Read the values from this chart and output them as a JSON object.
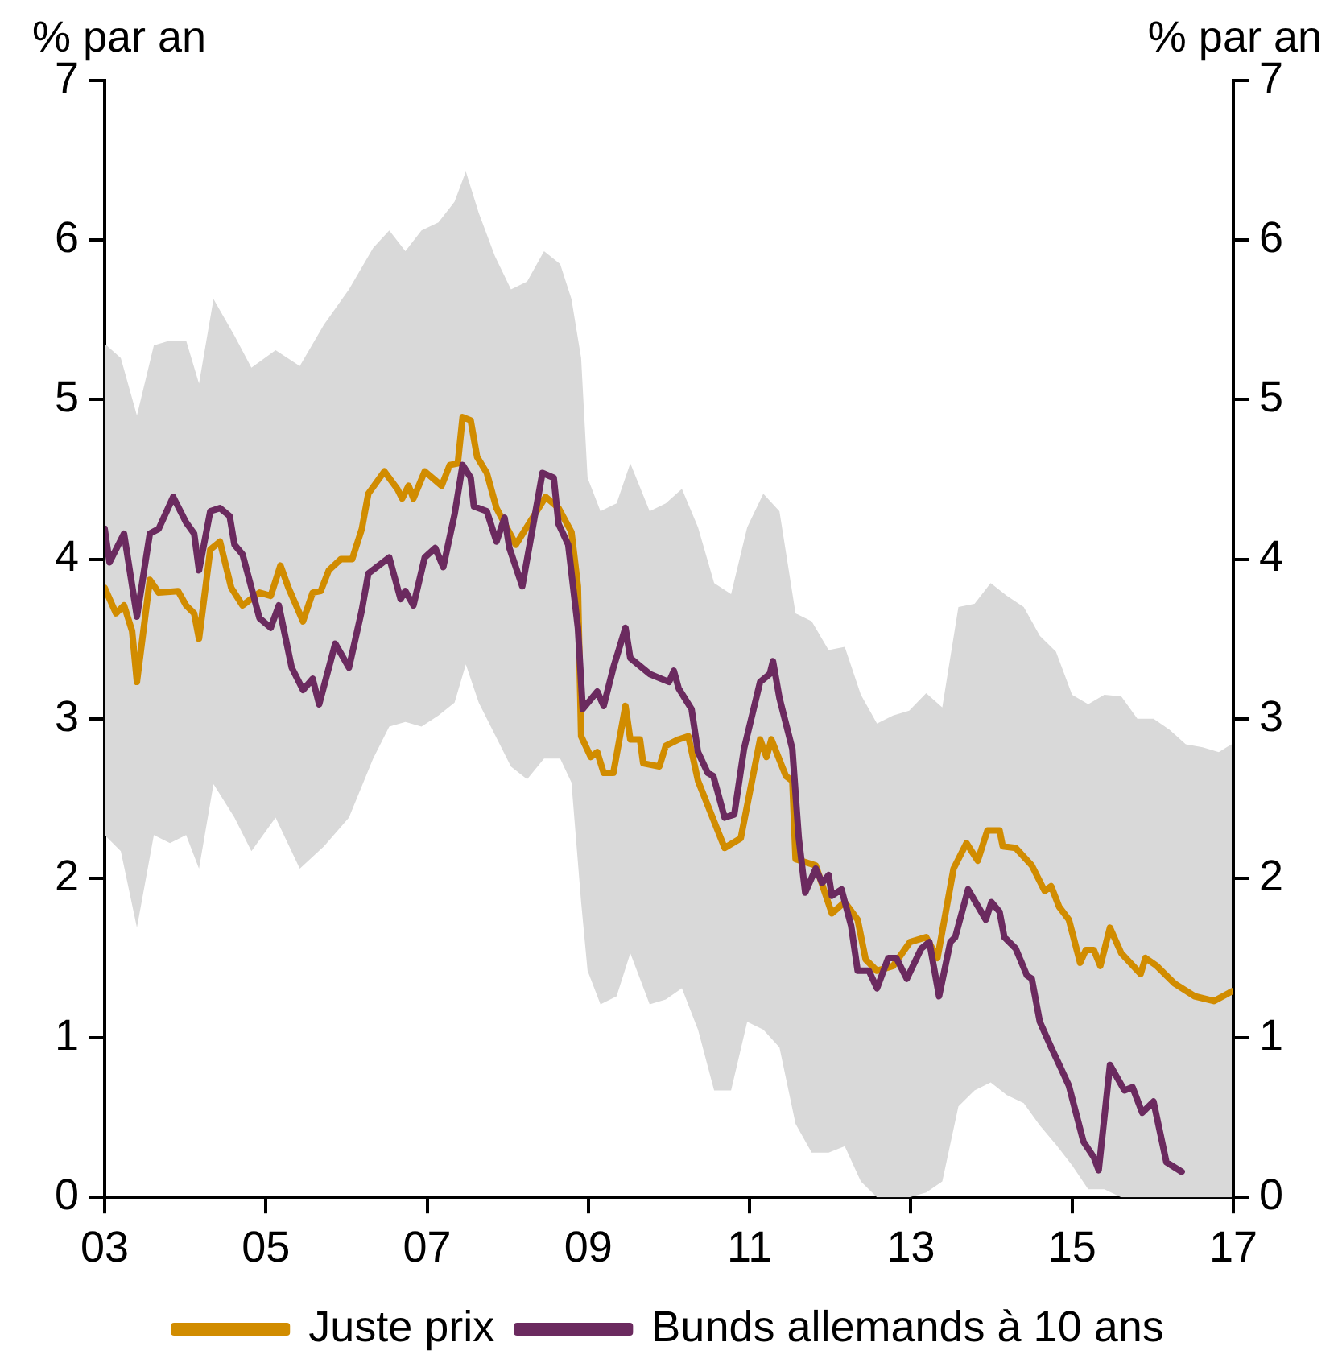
{
  "chart_data": {
    "type": "line",
    "ylabel": "% par an",
    "y2label": "% par an",
    "xlim": [
      2003,
      2017
    ],
    "xticks": [
      {
        "value": 2003,
        "label": "03"
      },
      {
        "value": 2005,
        "label": "05"
      },
      {
        "value": 2007,
        "label": "07"
      },
      {
        "value": 2009,
        "label": "09"
      },
      {
        "value": 2011,
        "label": "11"
      },
      {
        "value": 2013,
        "label": "13"
      },
      {
        "value": 2015,
        "label": "15"
      },
      {
        "value": 2017,
        "label": "17"
      }
    ],
    "ylim": [
      0,
      7
    ],
    "yticks": [
      0,
      1,
      2,
      3,
      4,
      5,
      6,
      7
    ],
    "y2lim": [
      0,
      7
    ],
    "y2ticks": [
      0,
      1,
      2,
      3,
      4,
      5,
      6,
      7
    ],
    "legend": "bottom",
    "marker": "none",
    "line_style": "solid",
    "series": [
      {
        "type": "area",
        "color": "#d9d9d9",
        "x": [
          2003.0,
          2003.2,
          2003.4,
          2003.61,
          2003.81,
          2004.01,
          2004.17,
          2004.35,
          2004.61,
          2004.82,
          2005.12,
          2005.42,
          2005.72,
          2006.03,
          2006.33,
          2006.53,
          2006.73,
          2006.93,
          2007.14,
          2007.34,
          2007.48,
          2007.64,
          2007.84,
          2008.04,
          2008.24,
          2008.45,
          2008.65,
          2008.79,
          2008.91,
          2008.99,
          2009.15,
          2009.35,
          2009.52,
          2009.76,
          2009.96,
          2010.16,
          2010.36,
          2010.56,
          2010.77,
          2010.97,
          2011.17,
          2011.37,
          2011.57,
          2011.77,
          2011.98,
          2012.18,
          2012.38,
          2012.58,
          2012.78,
          2012.98,
          2013.19,
          2013.39,
          2013.59,
          2013.79,
          2013.99,
          2014.19,
          2014.4,
          2014.6,
          2014.8,
          2015.0,
          2015.2,
          2015.4,
          2015.61,
          2015.81,
          2016.01,
          2016.21,
          2016.41,
          2016.62,
          2016.82,
          2016.98
        ],
        "values": [
          null,
          null,
          null,
          null,
          null,
          null,
          null,
          null,
          null,
          null,
          null,
          null,
          null,
          null,
          null,
          null,
          null,
          null,
          null,
          null,
          null,
          null,
          null,
          null,
          null,
          null,
          null,
          null,
          null,
          null,
          null,
          null,
          null,
          null,
          null,
          null,
          null,
          null,
          null,
          null,
          null,
          null,
          null,
          null,
          null,
          null,
          null,
          null,
          null,
          null,
          null,
          null,
          null,
          null,
          null,
          null,
          null,
          null,
          null,
          null,
          null,
          null,
          null,
          null,
          null,
          null,
          null,
          null,
          null,
          null
        ],
        "upper": [
          5.35,
          5.26,
          4.9,
          5.34,
          5.37,
          5.37,
          5.1,
          5.63,
          5.4,
          5.2,
          5.31,
          5.21,
          5.47,
          5.69,
          5.95,
          6.06,
          5.93,
          6.06,
          6.11,
          6.24,
          6.43,
          6.17,
          5.9,
          5.69,
          5.74,
          5.93,
          5.85,
          5.63,
          5.26,
          4.51,
          4.3,
          4.35,
          4.6,
          4.3,
          4.35,
          4.44,
          4.2,
          3.85,
          3.78,
          4.2,
          4.41,
          4.3,
          3.66,
          3.61,
          3.43,
          3.45,
          3.15,
          2.97,
          3.02,
          3.05,
          3.16,
          3.07,
          3.7,
          3.72,
          3.85,
          3.77,
          3.7,
          3.52,
          3.42,
          3.15,
          3.09,
          3.15,
          3.14,
          3.0,
          3.0,
          2.93,
          2.84,
          2.82,
          2.79,
          2.84
        ],
        "lower": [
          2.27,
          2.17,
          1.69,
          2.27,
          2.22,
          2.27,
          2.06,
          2.59,
          2.38,
          2.17,
          2.38,
          2.06,
          2.2,
          2.38,
          2.75,
          2.95,
          2.98,
          2.95,
          3.02,
          3.1,
          3.34,
          3.1,
          2.9,
          2.7,
          2.62,
          2.75,
          2.75,
          2.6,
          1.85,
          1.42,
          1.21,
          1.26,
          1.53,
          1.21,
          1.24,
          1.31,
          1.05,
          0.67,
          0.67,
          1.1,
          1.05,
          0.94,
          0.46,
          0.28,
          0.28,
          0.32,
          0.1,
          0,
          0,
          0,
          0.03,
          0.1,
          0.57,
          0.67,
          0.72,
          0.64,
          0.59,
          0.45,
          0.33,
          0.2,
          0.05,
          0.05,
          0,
          0,
          0,
          0,
          0,
          0,
          0,
          0
        ]
      },
      {
        "type": "line",
        "name": "Juste prix",
        "color": "#d18c00",
        "x": [
          2003.0,
          2003.14,
          2003.24,
          2003.34,
          2003.4,
          2003.56,
          2003.67,
          2003.91,
          2004.01,
          2004.11,
          2004.17,
          2004.31,
          2004.43,
          2004.57,
          2004.71,
          2004.92,
          2005.06,
          2005.18,
          2005.28,
          2005.46,
          2005.58,
          2005.68,
          2005.78,
          2005.93,
          2006.07,
          2006.19,
          2006.27,
          2006.47,
          2006.63,
          2006.69,
          2006.77,
          2006.83,
          2006.97,
          2007.18,
          2007.28,
          2007.38,
          2007.44,
          2007.54,
          2007.62,
          2007.74,
          2007.86,
          2008.1,
          2008.47,
          2008.63,
          2008.79,
          2008.87,
          2008.91,
          2009.03,
          2009.11,
          2009.19,
          2009.31,
          2009.46,
          2009.52,
          2009.64,
          2009.68,
          2009.88,
          2009.96,
          2010.12,
          2010.24,
          2010.36,
          2010.69,
          2010.89,
          2011.13,
          2011.21,
          2011.27,
          2011.45,
          2011.53,
          2011.57,
          2011.82,
          2012.02,
          2012.18,
          2012.34,
          2012.44,
          2012.58,
          2012.78,
          2012.99,
          2013.19,
          2013.33,
          2013.53,
          2013.69,
          2013.83,
          2013.95,
          2014.1,
          2014.14,
          2014.3,
          2014.5,
          2014.66,
          2014.74,
          2014.84,
          2014.96,
          2015.1,
          2015.17,
          2015.27,
          2015.35,
          2015.47,
          2015.61,
          2015.85,
          2015.91,
          2016.05,
          2016.27,
          2016.52,
          2016.76,
          2016.98
        ],
        "values": [
          3.82,
          3.66,
          3.71,
          3.55,
          3.23,
          3.87,
          3.79,
          3.8,
          3.71,
          3.66,
          3.5,
          4.06,
          4.11,
          3.82,
          3.71,
          3.79,
          3.77,
          3.96,
          3.82,
          3.61,
          3.79,
          3.8,
          3.93,
          4.0,
          4.0,
          4.19,
          4.41,
          4.55,
          4.44,
          4.38,
          4.46,
          4.38,
          4.55,
          4.46,
          4.59,
          4.6,
          4.89,
          4.87,
          4.64,
          4.54,
          4.32,
          4.09,
          4.39,
          4.32,
          4.17,
          3.83,
          2.89,
          2.76,
          2.79,
          2.66,
          2.66,
          3.08,
          2.87,
          2.87,
          2.72,
          2.7,
          2.83,
          2.87,
          2.89,
          2.61,
          2.19,
          2.25,
          2.87,
          2.76,
          2.87,
          2.64,
          2.61,
          2.12,
          2.08,
          1.78,
          1.85,
          1.74,
          1.49,
          1.42,
          1.45,
          1.6,
          1.63,
          1.5,
          2.06,
          2.22,
          2.11,
          2.3,
          2.3,
          2.2,
          2.19,
          2.08,
          1.92,
          1.95,
          1.82,
          1.74,
          1.47,
          1.55,
          1.55,
          1.45,
          1.69,
          1.53,
          1.4,
          1.5,
          1.45,
          1.34,
          1.26,
          1.23,
          1.29
        ]
      },
      {
        "type": "line",
        "name": "Bunds allemands à 10 ans",
        "color": "#6b2a5f",
        "x": [
          2003.0,
          2003.06,
          2003.24,
          2003.4,
          2003.56,
          2003.67,
          2003.85,
          2004.01,
          2004.11,
          2004.17,
          2004.31,
          2004.43,
          2004.55,
          2004.61,
          2004.71,
          2004.92,
          2005.06,
          2005.16,
          2005.32,
          2005.46,
          2005.58,
          2005.66,
          2005.86,
          2006.03,
          2006.19,
          2006.27,
          2006.53,
          2006.67,
          2006.73,
          2006.83,
          2006.97,
          2007.1,
          2007.2,
          2007.34,
          2007.44,
          2007.54,
          2007.58,
          2007.74,
          2007.86,
          2007.96,
          2008.02,
          2008.18,
          2008.43,
          2008.57,
          2008.63,
          2008.75,
          2008.87,
          2008.93,
          2009.11,
          2009.19,
          2009.31,
          2009.46,
          2009.52,
          2009.76,
          2010.0,
          2010.06,
          2010.12,
          2010.28,
          2010.36,
          2010.48,
          2010.55,
          2010.69,
          2010.81,
          2010.93,
          2011.13,
          2011.25,
          2011.29,
          2011.37,
          2011.53,
          2011.61,
          2011.69,
          2011.82,
          2011.9,
          2011.98,
          2012.02,
          2012.14,
          2012.26,
          2012.34,
          2012.48,
          2012.58,
          2012.72,
          2012.82,
          2012.95,
          2013.13,
          2013.23,
          2013.35,
          2013.49,
          2013.55,
          2013.71,
          2013.93,
          2014.0,
          2014.1,
          2014.16,
          2014.3,
          2014.44,
          2014.5,
          2014.6,
          2014.74,
          2014.86,
          2014.96,
          2015.14,
          2015.27,
          2015.33,
          2015.47,
          2015.65,
          2015.75,
          2015.87,
          2016.01,
          2016.17,
          2016.36
        ],
        "values": [
          4.19,
          3.98,
          4.16,
          3.64,
          4.16,
          4.19,
          4.39,
          4.23,
          4.16,
          3.93,
          4.3,
          4.32,
          4.27,
          4.09,
          4.03,
          3.63,
          3.57,
          3.71,
          3.32,
          3.18,
          3.25,
          3.09,
          3.47,
          3.32,
          3.68,
          3.91,
          4.01,
          3.75,
          3.8,
          3.71,
          4.01,
          4.07,
          3.95,
          4.28,
          4.59,
          4.51,
          4.33,
          4.3,
          4.11,
          4.26,
          4.07,
          3.83,
          4.54,
          4.51,
          4.22,
          4.09,
          3.57,
          3.06,
          3.17,
          3.08,
          3.32,
          3.57,
          3.38,
          3.28,
          3.23,
          3.3,
          3.19,
          3.06,
          2.79,
          2.66,
          2.64,
          2.38,
          2.4,
          2.81,
          3.23,
          3.28,
          3.36,
          3.13,
          2.81,
          2.25,
          1.91,
          2.06,
          1.97,
          2.02,
          1.89,
          1.93,
          1.7,
          1.42,
          1.42,
          1.31,
          1.5,
          1.5,
          1.37,
          1.56,
          1.6,
          1.26,
          1.6,
          1.63,
          1.93,
          1.74,
          1.85,
          1.79,
          1.63,
          1.56,
          1.39,
          1.37,
          1.1,
          0.94,
          0.81,
          0.7,
          0.35,
          0.25,
          0.17,
          0.83,
          0.67,
          0.69,
          0.53,
          0.6,
          0.22,
          0.16
        ]
      }
    ]
  }
}
